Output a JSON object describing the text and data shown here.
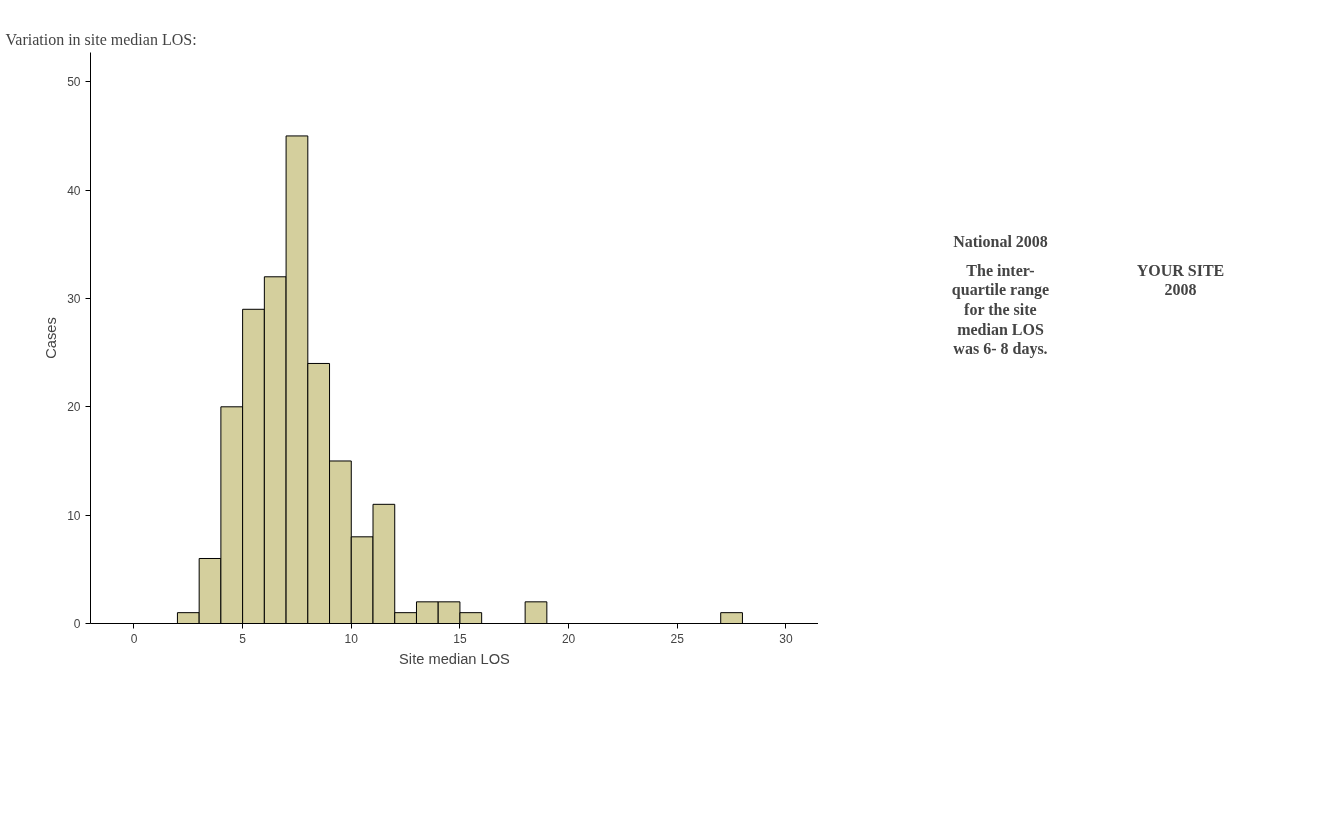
{
  "chart_data": {
    "type": "histogram",
    "title": "Variation in site median LOS:",
    "xlabel": "Site median LOS",
    "ylabel": "Cases",
    "bins": [
      2,
      3,
      4,
      5,
      6,
      7,
      8,
      9,
      10,
      11,
      12,
      13,
      14,
      15,
      16,
      17,
      18,
      19,
      20,
      21,
      22,
      23,
      24,
      25,
      26,
      27,
      28
    ],
    "values": [
      1,
      6,
      20,
      29,
      32,
      45,
      24,
      15,
      8,
      11,
      1,
      2,
      2,
      1,
      0,
      0,
      2,
      0,
      0,
      0,
      0,
      0,
      0,
      0,
      0,
      1
    ],
    "color": "#d4cf9d",
    "xlim": [
      -2,
      31.5
    ],
    "ylim": [
      0,
      52.7
    ],
    "xticks": [
      0,
      5,
      10,
      15,
      20,
      25,
      30
    ],
    "yticks": [
      0,
      10,
      20,
      30,
      40,
      50
    ],
    "grid": false,
    "annotations": [
      "National 2008",
      "The inter-\nquartile range\nfor the site\nmedian LOS\nwas 6- 8 days.",
      "YOUR SITE\n2008"
    ]
  }
}
